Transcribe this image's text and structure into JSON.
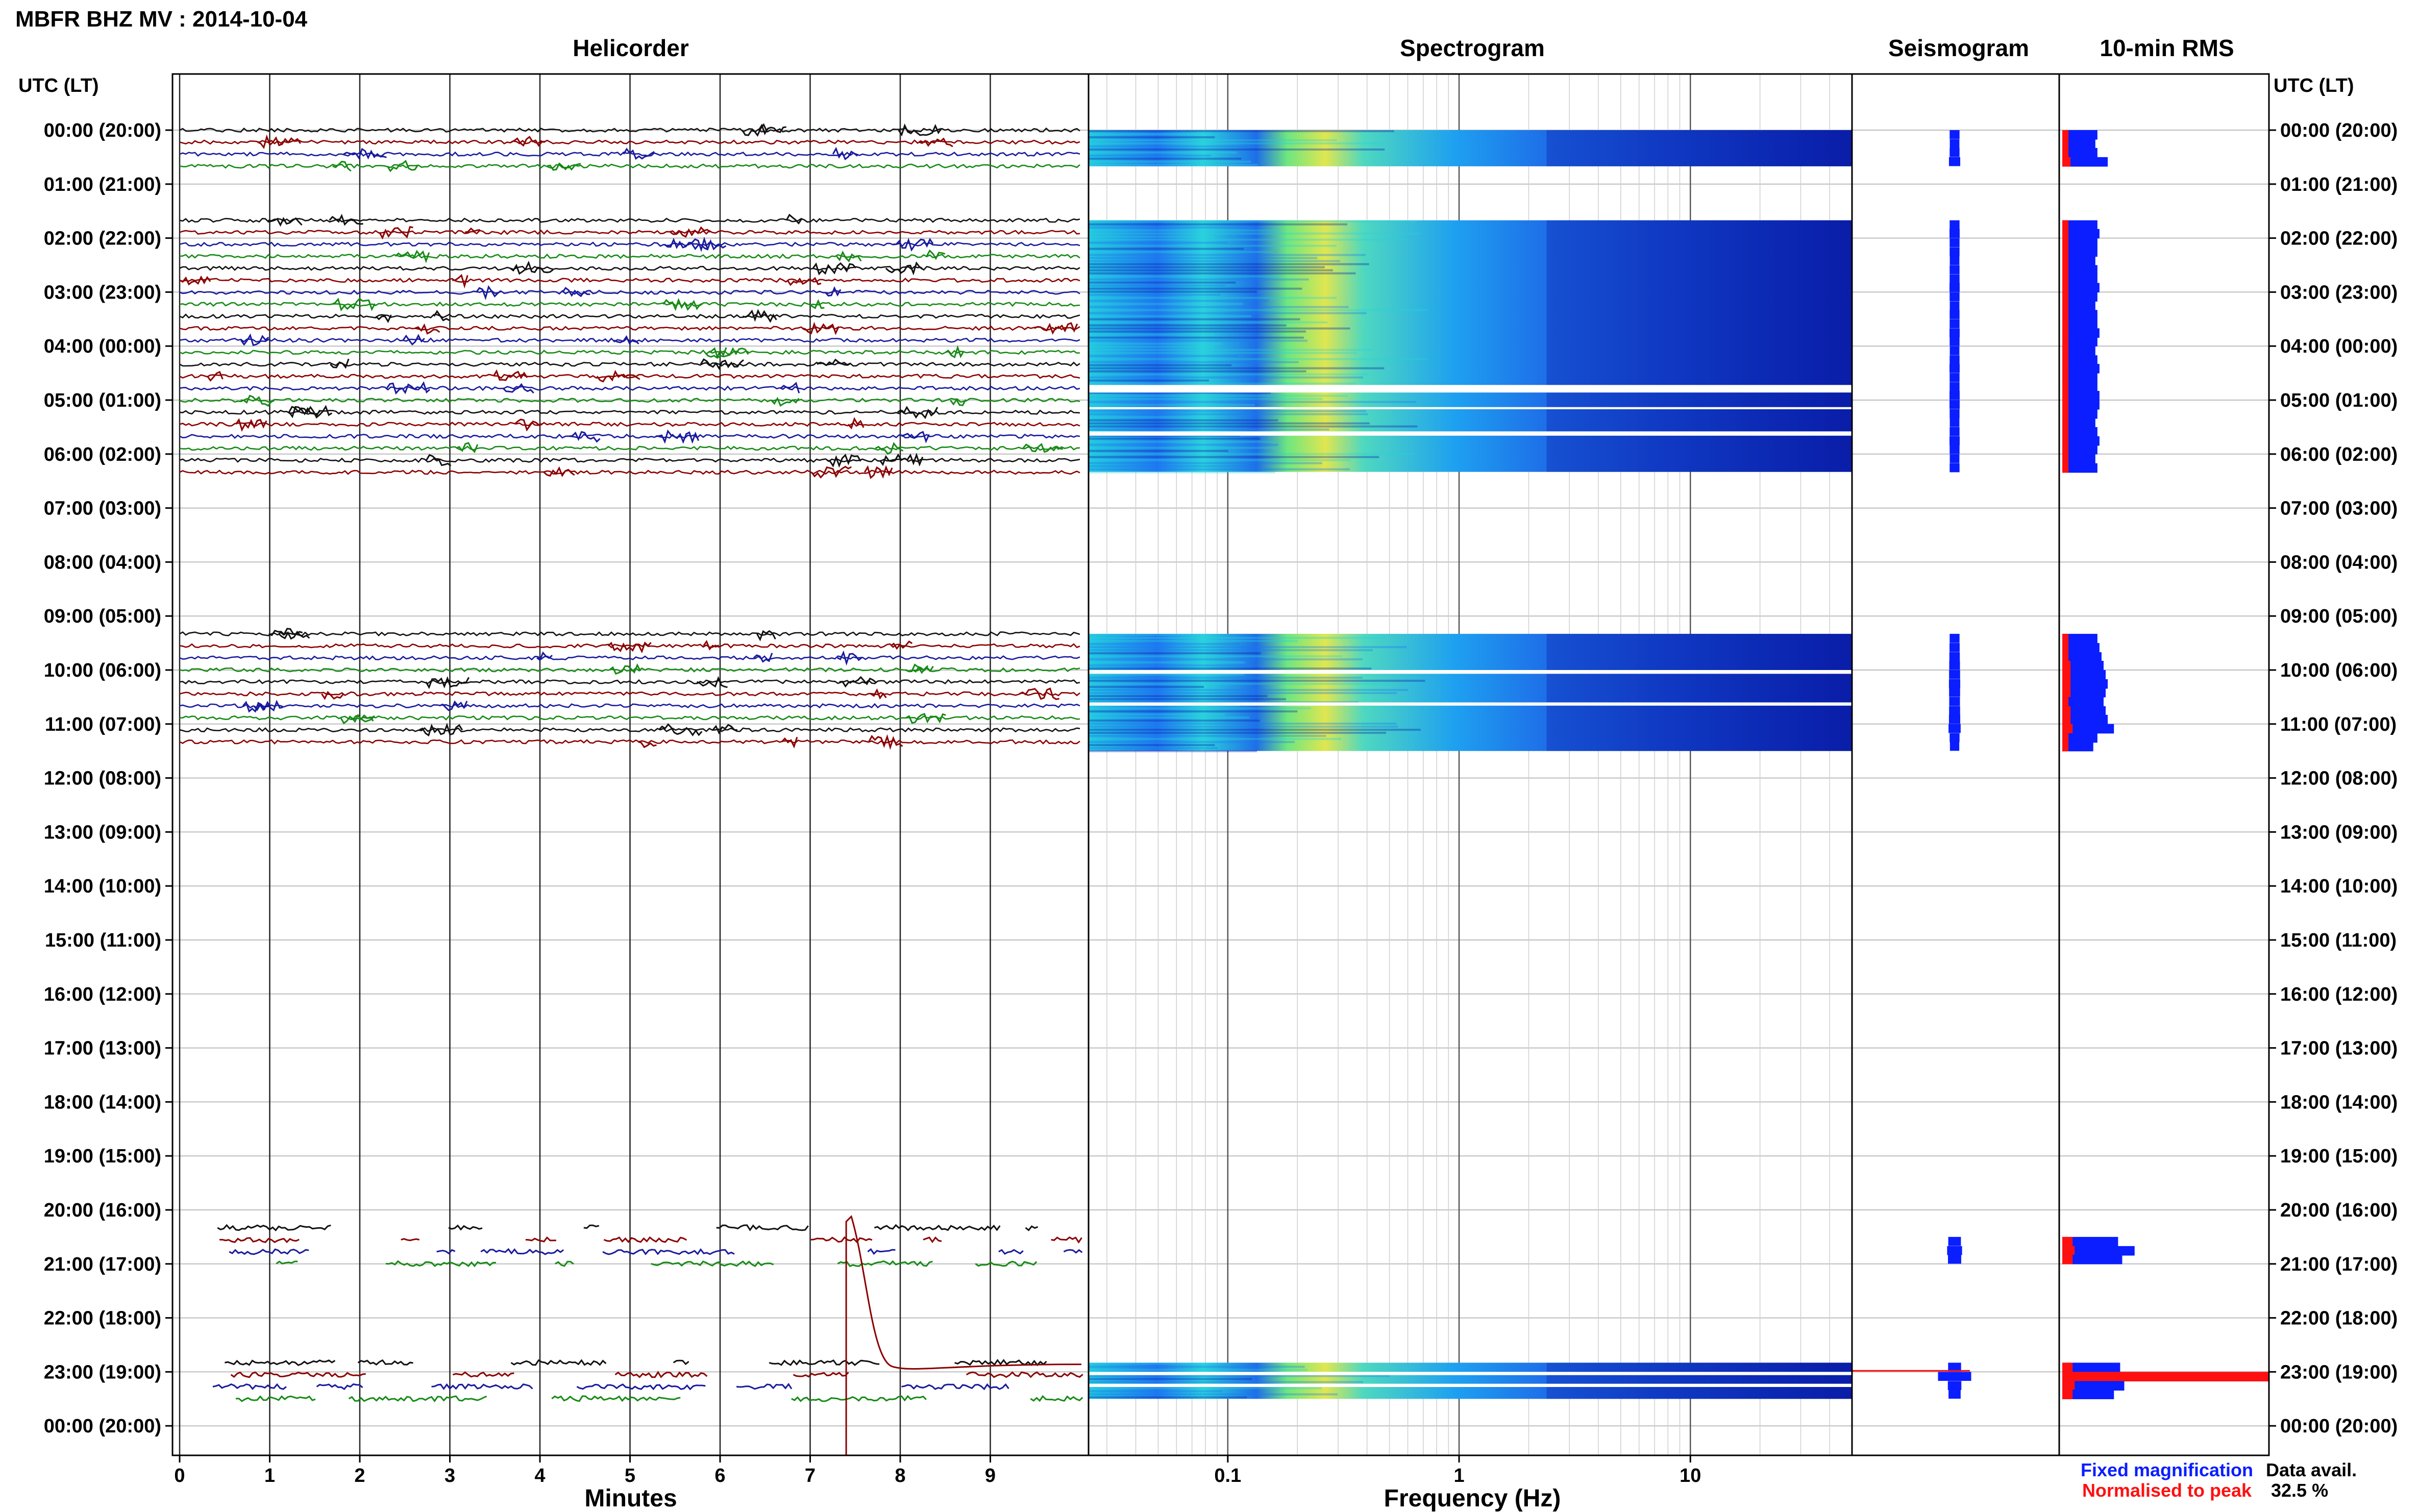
{
  "title": "MBFR BHZ MV : 2014-10-04",
  "panels": {
    "helicorder": "Helicorder",
    "spectrogram": "Spectrogram",
    "seismogram": "Seismogram",
    "rms": "10-min RMS"
  },
  "time_axis_label_left": "UTC (LT)",
  "time_axis_label_right": "UTC (LT)",
  "hour_labels": [
    "00:00 (20:00)",
    "01:00 (21:00)",
    "02:00 (22:00)",
    "03:00 (23:00)",
    "04:00 (00:00)",
    "05:00 (01:00)",
    "06:00 (02:00)",
    "07:00 (03:00)",
    "08:00 (04:00)",
    "09:00 (05:00)",
    "10:00 (06:00)",
    "11:00 (07:00)",
    "12:00 (08:00)",
    "13:00 (09:00)",
    "14:00 (10:00)",
    "15:00 (11:00)",
    "16:00 (12:00)",
    "17:00 (13:00)",
    "18:00 (14:00)",
    "19:00 (15:00)",
    "20:00 (16:00)",
    "21:00 (17:00)",
    "22:00 (18:00)",
    "23:00 (19:00)",
    "00:00 (20:00)"
  ],
  "helicorder_xlabel": "Minutes",
  "helicorder_xticks": [
    "0",
    "1",
    "2",
    "3",
    "4",
    "5",
    "6",
    "7",
    "8",
    "9"
  ],
  "spectrogram_xlabel": "Frequency (Hz)",
  "spectrogram_xticks": [
    "0.1",
    "1",
    "10"
  ],
  "legend": {
    "fixed": "Fixed magnification",
    "normalised": "Normalised to peak",
    "avail_label": "Data avail.",
    "avail_value": "32.5 %"
  },
  "colors": {
    "trace_black": "#111111",
    "trace_red": "#8b0000",
    "trace_blue": "#1a1a9e",
    "trace_green": "#168a16",
    "rms_fixed": "#0a1eff",
    "rms_norm": "#ff1010",
    "spec_dark": "#0a1ea8",
    "spec_mid": "#1e78f0",
    "spec_cyan": "#28d2dc",
    "spec_green": "#78e678",
    "spec_yellow": "#e6e650"
  },
  "chart_data": [
    {
      "type": "line",
      "name": "helicorder",
      "xlabel": "Minutes",
      "xlim": [
        0,
        10
      ],
      "ylim_hours": [
        0,
        24
      ],
      "data_segments_hours": [
        [
          0.0,
          0.67
        ],
        [
          1.67,
          6.33
        ],
        [
          9.33,
          11.5
        ],
        [
          20.33,
          21.0
        ],
        [
          22.83,
          23.5
        ]
      ],
      "step_event": {
        "hour": 20.5,
        "minute": 7.4
      }
    },
    {
      "type": "heatmap",
      "name": "spectrogram",
      "xlabel": "Frequency (Hz)",
      "xscale": "log",
      "xlim": [
        0.025,
        50
      ],
      "data_segments_hours": [
        [
          0.0,
          0.67
        ],
        [
          1.67,
          6.33
        ],
        [
          9.33,
          11.5
        ],
        [
          22.83,
          23.5
        ]
      ]
    },
    {
      "type": "bar",
      "name": "10-min RMS",
      "orientation": "horizontal",
      "rows_hours": [
        0.0,
        0.17,
        0.33,
        0.5,
        1.67,
        1.83,
        2.0,
        2.17,
        2.33,
        2.5,
        2.67,
        2.83,
        3.0,
        3.17,
        3.33,
        3.5,
        3.67,
        3.83,
        4.0,
        4.17,
        4.33,
        4.5,
        4.67,
        4.83,
        5.0,
        5.17,
        5.33,
        5.5,
        5.67,
        5.83,
        6.0,
        6.17,
        9.33,
        9.5,
        9.67,
        9.83,
        10.0,
        10.17,
        10.33,
        10.5,
        10.67,
        10.83,
        11.0,
        11.17,
        11.33,
        20.5,
        20.67,
        20.83,
        22.83,
        23.0,
        23.17,
        23.33
      ],
      "fixed_magnification": [
        0.17,
        0.16,
        0.17,
        0.22,
        0.17,
        0.18,
        0.17,
        0.17,
        0.16,
        0.17,
        0.17,
        0.18,
        0.17,
        0.16,
        0.17,
        0.17,
        0.18,
        0.17,
        0.16,
        0.17,
        0.18,
        0.17,
        0.17,
        0.18,
        0.18,
        0.17,
        0.16,
        0.17,
        0.18,
        0.17,
        0.16,
        0.17,
        0.17,
        0.18,
        0.19,
        0.2,
        0.21,
        0.22,
        0.21,
        0.2,
        0.21,
        0.22,
        0.25,
        0.17,
        0.15,
        0.27,
        0.35,
        0.29,
        0.28,
        1.0,
        0.3,
        0.25
      ],
      "normalised_to_peak": [
        0.03,
        0.03,
        0.03,
        0.04,
        0.03,
        0.03,
        0.03,
        0.03,
        0.03,
        0.03,
        0.03,
        0.03,
        0.03,
        0.03,
        0.03,
        0.03,
        0.03,
        0.03,
        0.03,
        0.03,
        0.03,
        0.03,
        0.03,
        0.03,
        0.03,
        0.03,
        0.03,
        0.03,
        0.03,
        0.03,
        0.03,
        0.03,
        0.03,
        0.03,
        0.03,
        0.04,
        0.04,
        0.04,
        0.04,
        0.03,
        0.04,
        0.04,
        0.05,
        0.03,
        0.03,
        0.05,
        0.06,
        0.05,
        0.05,
        1.0,
        0.06,
        0.05
      ],
      "data_availability_percent": 32.5
    }
  ]
}
